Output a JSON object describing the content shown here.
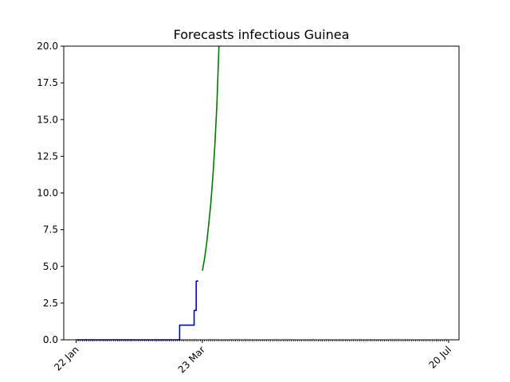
{
  "chart_data": {
    "type": "line",
    "title": "Forecasts infectious Guinea",
    "xlabel": "",
    "ylabel": "",
    "ylim": [
      0,
      20
    ],
    "yticks": [
      0.0,
      2.5,
      5.0,
      7.5,
      10.0,
      12.5,
      15.0,
      17.5,
      20.0
    ],
    "ytick_labels": [
      "0.0",
      "2.5",
      "5.0",
      "7.5",
      "10.0",
      "12.5",
      "15.0",
      "17.5",
      "20.0"
    ],
    "xlim": [
      "2020-01-16",
      "2020-07-25"
    ],
    "x_major_ticks": [
      "2020-01-22",
      "2020-03-23",
      "2020-07-20"
    ],
    "x_major_tick_labels": [
      "22 Jan",
      "23 Mar",
      "20 Jul"
    ],
    "x_minor_tick_range": [
      "2020-01-22",
      "2020-07-20"
    ],
    "grid": false,
    "series": [
      {
        "color": "#0000cc",
        "x": [
          "2020-01-22",
          "2020-03-12",
          "2020-03-12",
          "2020-03-19",
          "2020-03-19",
          "2020-03-20",
          "2020-03-20",
          "2020-03-21"
        ],
        "y": [
          0,
          0,
          1,
          1,
          2,
          2,
          4,
          4
        ]
      },
      {
        "color": "#007a00",
        "x": [
          "2020-03-23",
          "2020-03-24",
          "2020-03-25",
          "2020-03-26",
          "2020-03-27",
          "2020-03-28",
          "2020-03-29",
          "2020-03-30",
          "2020-03-31"
        ],
        "y": [
          4.7,
          5.5,
          6.5,
          7.8,
          9.2,
          11.0,
          13.2,
          16.0,
          20.0
        ]
      }
    ]
  }
}
